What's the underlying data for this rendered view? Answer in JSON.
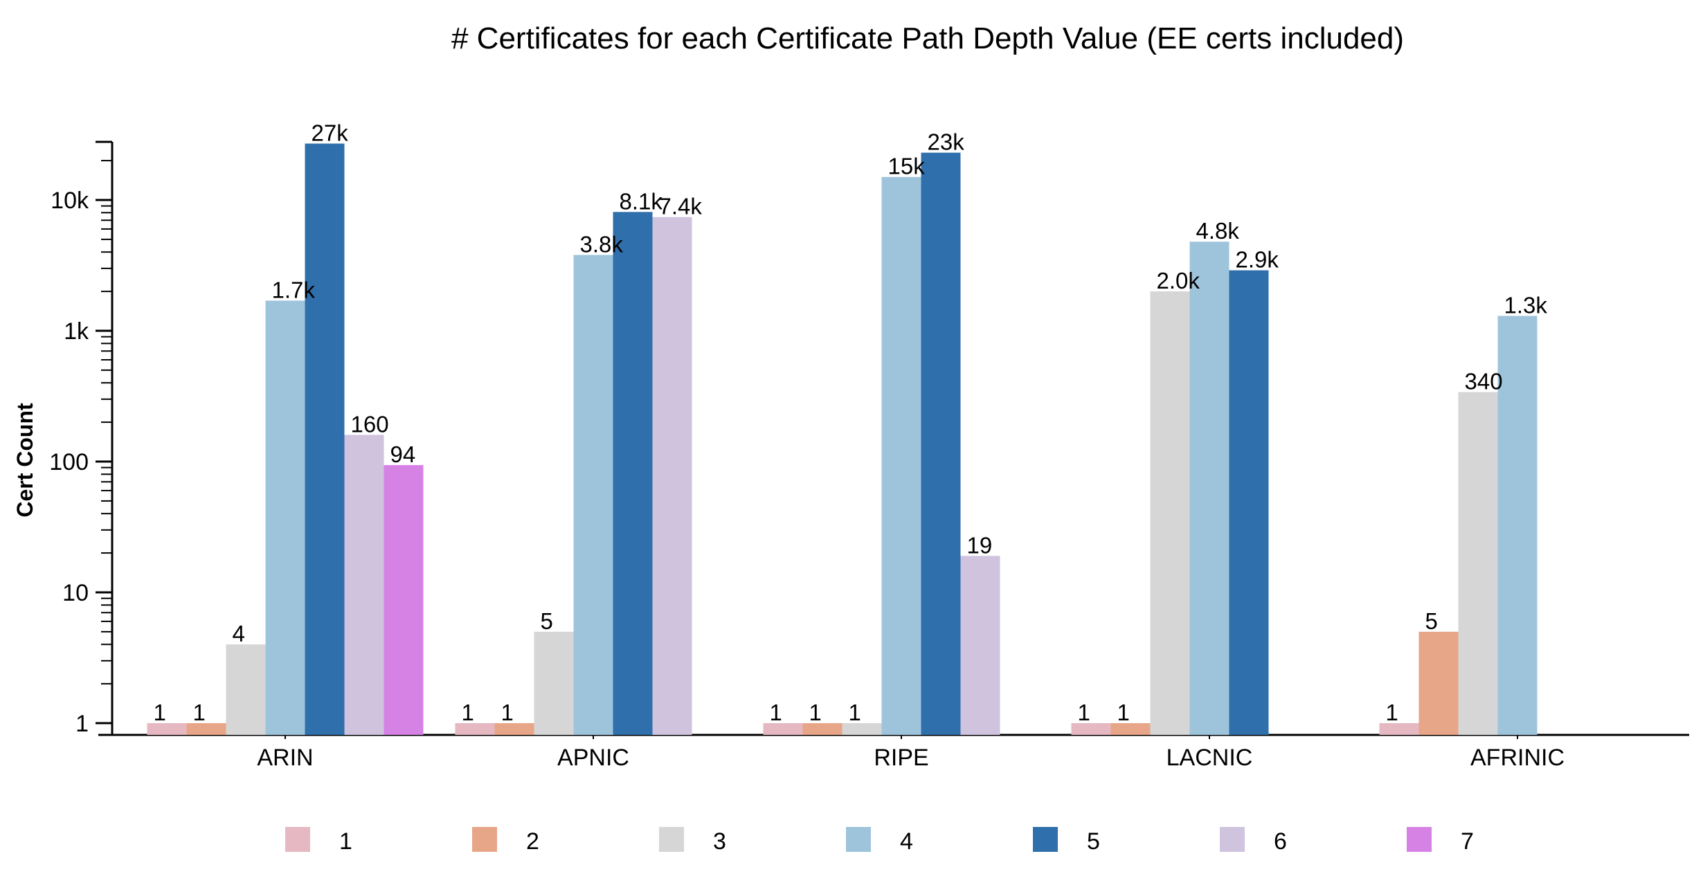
{
  "chart_data": {
    "type": "bar",
    "title": "# Certificates for each Certificate Path Depth Value (EE certs included)",
    "xlabel": "",
    "ylabel": "Cert Count",
    "yscale": "log",
    "ylim": [
      0.85,
      30000
    ],
    "y_ticks": [
      {
        "value": 1,
        "label": "1"
      },
      {
        "value": 10,
        "label": "10"
      },
      {
        "value": 100,
        "label": "100"
      },
      {
        "value": 1000,
        "label": "1k"
      },
      {
        "value": 10000,
        "label": "10k"
      }
    ],
    "categories": [
      "ARIN",
      "APNIC",
      "RIPE",
      "LACNIC",
      "AFRINIC"
    ],
    "legend_position": "bottom",
    "grid": false,
    "series": [
      {
        "name": "1",
        "color": "#e6b8c2",
        "values": [
          1,
          1,
          1,
          1,
          1
        ],
        "labels": [
          "1",
          "1",
          "1",
          "1",
          "1"
        ]
      },
      {
        "name": "2",
        "color": "#e8a688",
        "values": [
          1,
          1,
          1,
          1,
          5
        ],
        "labels": [
          "1",
          "1",
          "1",
          "1",
          "5"
        ]
      },
      {
        "name": "3",
        "color": "#d6d6d6",
        "values": [
          4,
          5,
          1,
          2000,
          340
        ],
        "labels": [
          "4",
          "5",
          "1",
          "2.0k",
          "340"
        ]
      },
      {
        "name": "4",
        "color": "#9ec4dc",
        "values": [
          1700,
          3800,
          15000,
          4800,
          1300
        ],
        "labels": [
          "1.7k",
          "3.8k",
          "15k",
          "4.8k",
          "1.3k"
        ]
      },
      {
        "name": "5",
        "color": "#2f6fab",
        "values": [
          27000,
          8100,
          23000,
          2900,
          null
        ],
        "labels": [
          "27k",
          "8.1k",
          "23k",
          "2.9k",
          ""
        ]
      },
      {
        "name": "6",
        "color": "#cfc3de",
        "values": [
          160,
          7400,
          19,
          null,
          null
        ],
        "labels": [
          "160",
          "7.4k",
          "19",
          "",
          ""
        ]
      },
      {
        "name": "7",
        "color": "#d682e4",
        "values": [
          94,
          null,
          null,
          null,
          null
        ],
        "labels": [
          "94",
          "",
          "",
          "",
          ""
        ]
      }
    ]
  }
}
